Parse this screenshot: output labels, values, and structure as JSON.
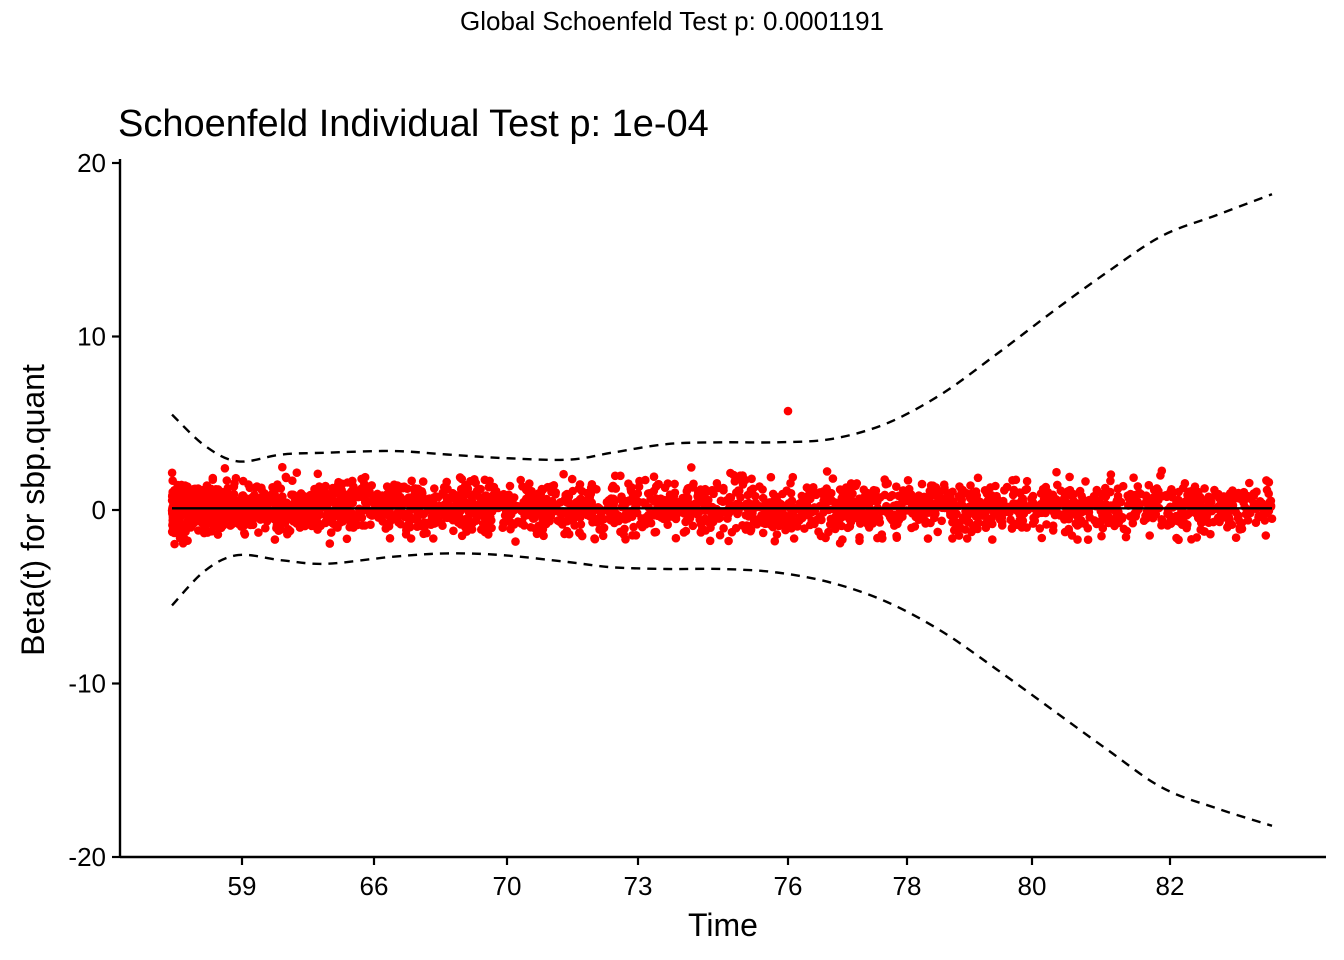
{
  "global_title": "Global Schoenfeld Test p: 0.0001191",
  "chart_data": {
    "type": "scatter",
    "title": "Schoenfeld Individual Test p: 1e-04",
    "xlabel": "Time",
    "ylabel": "Beta(t) for sbp.quant",
    "x_tick_labels": [
      "59",
      "66",
      "70",
      "73",
      "76",
      "78",
      "80",
      "82"
    ],
    "y_ticks": [
      -20,
      -10,
      0,
      10,
      20
    ],
    "y_tick_labels": [
      "-20",
      "-10",
      "0",
      "10",
      "20"
    ],
    "ylim": [
      -20,
      20
    ],
    "grid": false,
    "point_color": "#ff0000",
    "line_color": "#000000",
    "series": [
      {
        "kind": "points",
        "description_x": "transformed time rank (ticks labelled with time quantiles)",
        "x_range": [
          0.0,
          1.0
        ],
        "y_range_approx": [
          -2.6,
          5.7
        ],
        "notable_points": [
          {
            "x": 0.56,
            "y": 5.7
          },
          {
            "x": 1.0,
            "y": -0.5
          },
          {
            "x": 0.96,
            "y": 0.8
          }
        ]
      },
      {
        "kind": "smooth_fit",
        "x": [
          0.0,
          0.1,
          0.2,
          0.3,
          0.4,
          0.5,
          0.6,
          0.7,
          0.8,
          0.9,
          1.0
        ],
        "y": [
          0.1,
          0.1,
          0.1,
          0.1,
          0.1,
          0.1,
          0.1,
          0.1,
          0.1,
          0.1,
          0.1
        ]
      },
      {
        "kind": "upper_confidence_band",
        "x": [
          0.0,
          0.03,
          0.06,
          0.1,
          0.14,
          0.2,
          0.25,
          0.3,
          0.36,
          0.4,
          0.45,
          0.5,
          0.55,
          0.6,
          0.65,
          0.7,
          0.75,
          0.8,
          0.85,
          0.9,
          0.95,
          1.0
        ],
        "y": [
          5.5,
          3.7,
          2.8,
          3.2,
          3.3,
          3.4,
          3.2,
          3.0,
          2.9,
          3.3,
          3.8,
          3.9,
          3.9,
          4.1,
          5.0,
          6.7,
          9.0,
          11.4,
          13.7,
          15.8,
          17.0,
          18.2
        ]
      },
      {
        "kind": "lower_confidence_band",
        "x": [
          0.0,
          0.03,
          0.06,
          0.1,
          0.14,
          0.2,
          0.25,
          0.3,
          0.36,
          0.4,
          0.45,
          0.5,
          0.55,
          0.6,
          0.65,
          0.7,
          0.75,
          0.8,
          0.85,
          0.9,
          0.95,
          1.0
        ],
        "y": [
          -5.5,
          -3.5,
          -2.6,
          -2.9,
          -3.1,
          -2.7,
          -2.5,
          -2.6,
          -3.0,
          -3.3,
          -3.4,
          -3.4,
          -3.6,
          -4.2,
          -5.3,
          -7.0,
          -9.2,
          -11.5,
          -13.8,
          -16.0,
          -17.2,
          -18.2
        ]
      }
    ]
  }
}
